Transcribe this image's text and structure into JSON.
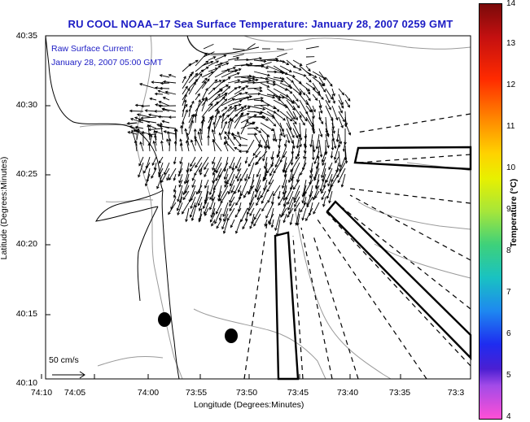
{
  "title": "RU COOL  NOAA–17  Sea Surface Temperature:  January 28, 2007 0259 GMT",
  "annotation": {
    "line1": "Raw Surface Current:",
    "line2": "January 28, 2007 05:00 GMT",
    "scale_label": "50 cm/s"
  },
  "axes": {
    "y_label": "Latitude (Degrees:Minutes)",
    "x_label": "Longitude (Degrees:Minutes)",
    "y_ticks": [
      "40:35",
      "40:30",
      "40:25",
      "40:20",
      "40:15",
      "40:10"
    ],
    "x_ticks": [
      "74:10",
      "74:05",
      "74:00",
      "73:55",
      "73:50",
      "73:45",
      "73:40",
      "73:35",
      "73:3"
    ]
  },
  "colorbar": {
    "label": "Temperature (°C)",
    "ticks": [
      "14",
      "13",
      "12",
      "11",
      "10",
      "9",
      "8",
      "7",
      "6",
      "5",
      "4"
    ],
    "min": 4,
    "max": 14
  },
  "colors": {
    "title": "#1b1bc4",
    "coast": "#000000",
    "bathymetry": "#9a9a9a",
    "vectors": "#000000"
  }
}
